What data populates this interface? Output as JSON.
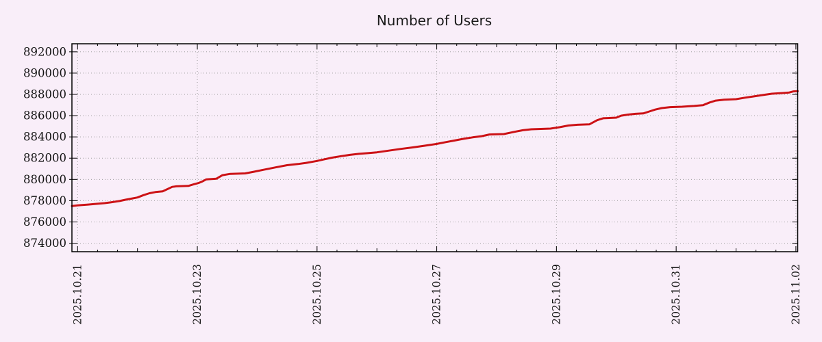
{
  "chart_data": {
    "type": "line",
    "title": "Number of Users",
    "legend": "none",
    "grid": "dotted",
    "colors": {
      "background": "#f9eef9",
      "line": "#cc1216",
      "grid": "#9e9e9e",
      "axis": "#000000",
      "text": "#111111"
    },
    "x_axis": {
      "label": "",
      "tick_labels": [
        "2025.10.21",
        "2025.10.23",
        "2025.10.25",
        "2025.10.27",
        "2025.10.29",
        "2025.10.31",
        "2025.11.02"
      ],
      "tick_days": [
        0,
        2,
        4,
        6,
        8,
        10,
        12
      ],
      "minor_tick_interval_days": 0.3333,
      "range_days": [
        -0.095,
        12.03
      ],
      "tick_label_rotation_deg": -90
    },
    "y_axis": {
      "label": "",
      "tick_values": [
        874000,
        876000,
        878000,
        880000,
        882000,
        884000,
        886000,
        888000,
        890000,
        892000
      ],
      "tick_labels": [
        "874000",
        "876000",
        "878000",
        "880000",
        "882000",
        "884000",
        "886000",
        "888000",
        "890000",
        "892000"
      ],
      "range": [
        873200,
        892760
      ]
    },
    "series": [
      {
        "name": "users",
        "color": "#cc1216",
        "points_format": [
          "days_after_2025.10.21",
          "users"
        ],
        "points": [
          [
            -0.095,
            877500
          ],
          [
            0.0,
            877560
          ],
          [
            0.15,
            877620
          ],
          [
            0.3,
            877700
          ],
          [
            0.45,
            877770
          ],
          [
            0.55,
            877840
          ],
          [
            0.7,
            877970
          ],
          [
            0.8,
            878090
          ],
          [
            0.9,
            878190
          ],
          [
            1.0,
            878300
          ],
          [
            1.1,
            878520
          ],
          [
            1.2,
            878700
          ],
          [
            1.3,
            878810
          ],
          [
            1.42,
            878880
          ],
          [
            1.5,
            879090
          ],
          [
            1.58,
            879300
          ],
          [
            1.65,
            879350
          ],
          [
            1.85,
            879390
          ],
          [
            1.95,
            879560
          ],
          [
            2.02,
            879660
          ],
          [
            2.08,
            879800
          ],
          [
            2.15,
            880010
          ],
          [
            2.32,
            880070
          ],
          [
            2.42,
            880400
          ],
          [
            2.55,
            880520
          ],
          [
            2.8,
            880570
          ],
          [
            2.95,
            880730
          ],
          [
            3.1,
            880900
          ],
          [
            3.3,
            881130
          ],
          [
            3.5,
            881340
          ],
          [
            3.68,
            881450
          ],
          [
            3.82,
            881560
          ],
          [
            4.0,
            881740
          ],
          [
            4.1,
            881870
          ],
          [
            4.25,
            882050
          ],
          [
            4.4,
            882190
          ],
          [
            4.55,
            882310
          ],
          [
            4.7,
            882410
          ],
          [
            4.85,
            882470
          ],
          [
            5.0,
            882550
          ],
          [
            5.2,
            882710
          ],
          [
            5.4,
            882870
          ],
          [
            5.6,
            883010
          ],
          [
            5.8,
            883170
          ],
          [
            6.0,
            883340
          ],
          [
            6.15,
            883510
          ],
          [
            6.3,
            883660
          ],
          [
            6.45,
            883820
          ],
          [
            6.6,
            883960
          ],
          [
            6.75,
            884070
          ],
          [
            6.88,
            884230
          ],
          [
            7.12,
            884270
          ],
          [
            7.3,
            884480
          ],
          [
            7.45,
            884640
          ],
          [
            7.58,
            884720
          ],
          [
            7.9,
            884780
          ],
          [
            8.05,
            884910
          ],
          [
            8.2,
            885070
          ],
          [
            8.35,
            885140
          ],
          [
            8.55,
            885180
          ],
          [
            8.68,
            885570
          ],
          [
            8.78,
            885750
          ],
          [
            9.0,
            885810
          ],
          [
            9.08,
            886000
          ],
          [
            9.2,
            886100
          ],
          [
            9.32,
            886170
          ],
          [
            9.45,
            886210
          ],
          [
            9.55,
            886390
          ],
          [
            9.65,
            886570
          ],
          [
            9.76,
            886710
          ],
          [
            9.9,
            886800
          ],
          [
            10.1,
            886840
          ],
          [
            10.3,
            886910
          ],
          [
            10.45,
            886990
          ],
          [
            10.56,
            887240
          ],
          [
            10.66,
            887410
          ],
          [
            10.8,
            887500
          ],
          [
            11.0,
            887550
          ],
          [
            11.15,
            887690
          ],
          [
            11.3,
            887810
          ],
          [
            11.45,
            887940
          ],
          [
            11.6,
            888060
          ],
          [
            11.78,
            888130
          ],
          [
            11.89,
            888180
          ],
          [
            11.96,
            888280
          ],
          [
            12.03,
            888310
          ]
        ]
      }
    ]
  }
}
